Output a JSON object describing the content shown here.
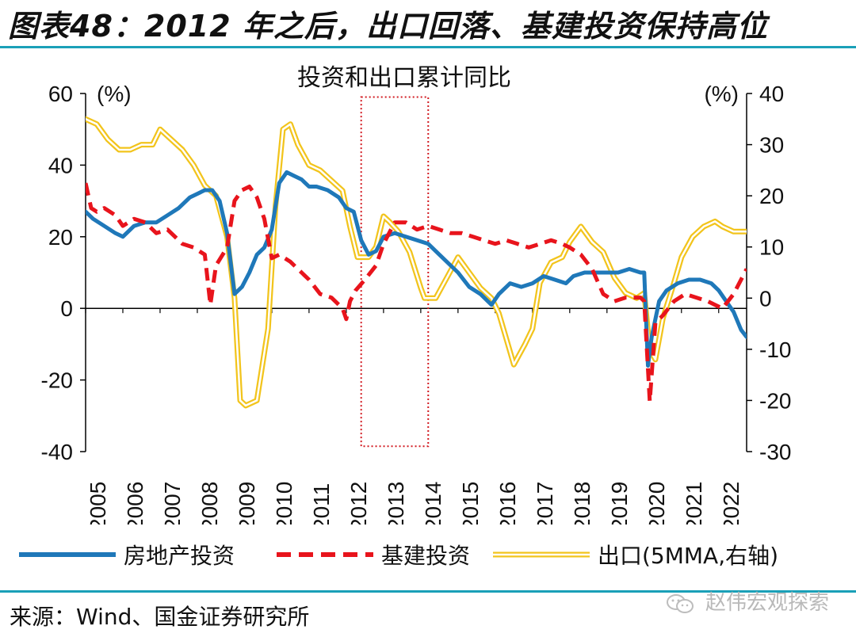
{
  "figure_title": "图表48：2012 年之后，出口回落、基建投资保持高位",
  "source": "来源：Wind、国金证券研究所",
  "watermark": "赵伟宏观探索",
  "chart_data": {
    "type": "line",
    "title": "投资和出口累计同比",
    "y_left": {
      "unit_label": "(%)",
      "ylim": [
        -40,
        60
      ],
      "ticks": [
        "60",
        "40",
        "20",
        "0",
        "-20",
        "-40"
      ]
    },
    "y_right": {
      "unit_label": "(%)",
      "ylim": [
        -30,
        40
      ],
      "ticks": [
        "40",
        "30",
        "20",
        "10",
        "0",
        "-10",
        "-20",
        "-30"
      ]
    },
    "x_ticks": [
      "2005",
      "2006",
      "2007",
      "2008",
      "2009",
      "2010",
      "2011",
      "2012",
      "2013",
      "2014",
      "2015",
      "2016",
      "2017",
      "2018",
      "2019",
      "2020",
      "2021",
      "2022"
    ],
    "xlim": [
      2005.0,
      2022.75
    ],
    "highlight_box": {
      "x": [
        2012.4,
        2014.2
      ],
      "y_left": [
        -38.5,
        59
      ]
    },
    "series": [
      {
        "name": "房地产投资",
        "axis": "left",
        "color": "#1f78b9",
        "style": "solid",
        "x": [
          2005.0,
          2005.2,
          2005.5,
          2005.8,
          2006.0,
          2006.3,
          2006.6,
          2006.9,
          2007.2,
          2007.5,
          2007.8,
          2008.0,
          2008.2,
          2008.4,
          2008.6,
          2008.8,
          2009.0,
          2009.2,
          2009.4,
          2009.6,
          2009.8,
          2010.0,
          2010.2,
          2010.4,
          2010.6,
          2010.8,
          2011.0,
          2011.2,
          2011.5,
          2011.8,
          2012.0,
          2012.2,
          2012.4,
          2012.6,
          2012.8,
          2013.0,
          2013.3,
          2013.6,
          2013.9,
          2014.2,
          2014.5,
          2014.8,
          2015.0,
          2015.3,
          2015.6,
          2015.9,
          2016.1,
          2016.4,
          2016.7,
          2017.0,
          2017.3,
          2017.6,
          2017.9,
          2018.1,
          2018.4,
          2018.7,
          2019.0,
          2019.3,
          2019.6,
          2019.9,
          2020.0,
          2020.1,
          2020.2,
          2020.4,
          2020.6,
          2020.9,
          2021.2,
          2021.5,
          2021.8,
          2022.0,
          2022.2,
          2022.4,
          2022.6,
          2022.75
        ],
        "y": [
          27,
          25,
          23,
          21,
          20,
          23,
          24,
          24,
          26,
          28,
          31,
          32,
          33,
          33,
          30,
          21,
          4,
          6,
          10,
          15,
          17,
          22,
          35,
          38,
          37,
          36,
          34,
          34,
          33,
          31,
          28,
          27,
          19,
          15,
          16,
          20,
          21,
          20,
          19,
          18,
          15,
          12,
          10,
          6,
          4,
          1,
          4,
          7,
          6,
          7,
          9,
          8,
          7,
          9,
          10,
          10,
          10,
          10,
          11,
          10,
          10,
          -16,
          -8,
          2,
          5,
          7,
          8,
          8,
          7,
          5,
          2,
          -1,
          -6,
          -8
        ]
      },
      {
        "name": "基建投资",
        "axis": "left",
        "color": "#e8141c",
        "style": "dashed",
        "x": [
          2005.0,
          2005.15,
          2005.3,
          2005.5,
          2005.8,
          2006.0,
          2006.3,
          2006.6,
          2006.9,
          2007.2,
          2007.6,
          2007.9,
          2008.2,
          2008.35,
          2008.5,
          2008.8,
          2009.0,
          2009.2,
          2009.4,
          2009.6,
          2009.8,
          2010.0,
          2010.2,
          2010.5,
          2010.8,
          2011.0,
          2011.3,
          2011.6,
          2011.9,
          2012.0,
          2012.1,
          2012.25,
          2012.5,
          2012.8,
          2013.0,
          2013.3,
          2013.6,
          2013.9,
          2014.2,
          2014.5,
          2014.8,
          2015.1,
          2015.4,
          2015.7,
          2016.0,
          2016.3,
          2016.6,
          2016.9,
          2017.2,
          2017.5,
          2017.8,
          2018.0,
          2018.3,
          2018.6,
          2018.9,
          2019.2,
          2019.5,
          2019.9,
          2020.0,
          2020.15,
          2020.3,
          2020.5,
          2020.8,
          2021.1,
          2021.4,
          2021.7,
          2021.9,
          2022.1,
          2022.4,
          2022.75
        ],
        "y": [
          35,
          28,
          27,
          28,
          26,
          23,
          25,
          24,
          21,
          22,
          18,
          17,
          15,
          1,
          12,
          17,
          30,
          33,
          34,
          31,
          25,
          14,
          15,
          13,
          10,
          8,
          4,
          3,
          0,
          -3,
          2,
          5,
          8,
          12,
          18,
          24,
          24,
          22,
          23,
          22,
          21,
          21,
          20,
          19,
          18,
          19,
          18,
          17,
          18,
          19,
          18,
          17,
          15,
          11,
          4,
          2,
          3,
          3,
          2,
          -26,
          -4,
          -2,
          2,
          4,
          3,
          2,
          1,
          0,
          4,
          11
        ]
      },
      {
        "name": "出口(5MMA,右轴)",
        "axis": "right",
        "color": "#f2c41c",
        "style": "double",
        "x": [
          2005.0,
          2005.3,
          2005.6,
          2005.9,
          2006.2,
          2006.5,
          2006.8,
          2007.0,
          2007.3,
          2007.6,
          2007.9,
          2008.2,
          2008.5,
          2008.8,
          2009.0,
          2009.15,
          2009.3,
          2009.6,
          2009.9,
          2010.1,
          2010.3,
          2010.5,
          2010.7,
          2011.0,
          2011.3,
          2011.6,
          2011.9,
          2012.1,
          2012.3,
          2012.6,
          2012.8,
          2013.0,
          2013.15,
          2013.4,
          2013.7,
          2014.0,
          2014.1,
          2014.4,
          2014.7,
          2015.0,
          2015.3,
          2015.6,
          2015.9,
          2016.1,
          2016.3,
          2016.5,
          2016.8,
          2017.0,
          2017.2,
          2017.5,
          2017.8,
          2018.0,
          2018.3,
          2018.6,
          2018.9,
          2019.2,
          2019.5,
          2019.8,
          2020.0,
          2020.15,
          2020.3,
          2020.5,
          2020.8,
          2021.0,
          2021.3,
          2021.6,
          2021.9,
          2022.1,
          2022.4,
          2022.75
        ],
        "y": [
          35,
          34,
          31,
          29,
          29,
          30,
          30,
          33,
          31,
          29,
          26,
          22,
          20,
          12,
          0,
          -20,
          -21,
          -20,
          -6,
          18,
          33,
          34,
          30,
          26,
          25,
          23,
          21,
          14,
          8,
          8,
          10,
          16,
          15,
          13,
          9,
          2,
          0,
          0,
          4,
          8,
          5,
          2,
          0,
          -3,
          -8,
          -13,
          -9,
          -6,
          3,
          7,
          8,
          11,
          14,
          11,
          9,
          4,
          1,
          0,
          1,
          -10,
          -12,
          -4,
          3,
          8,
          12,
          14,
          15,
          14,
          13,
          13
        ]
      }
    ]
  }
}
